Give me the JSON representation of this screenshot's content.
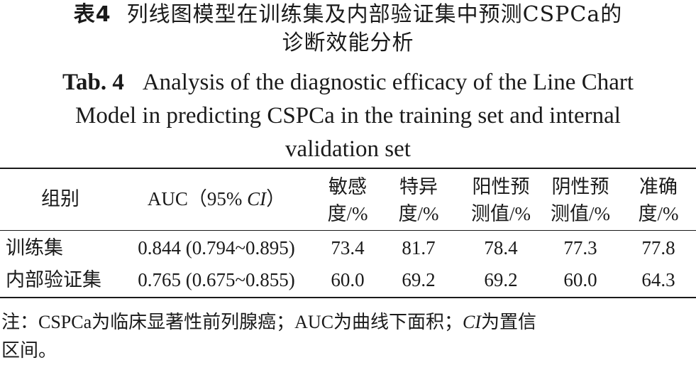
{
  "title_cn": {
    "tab_no": "表4",
    "line1": "列线图模型在训练集及内部验证集中预测CSPCa的",
    "line2": "诊断效能分析"
  },
  "title_en": {
    "tab_no": "Tab. 4",
    "line1": "Analysis of the diagnostic efficacy of the Line Chart",
    "line2": "Model in predicting CSPCa in the training set and internal",
    "line3": "validation set"
  },
  "table": {
    "headers": {
      "group": "组别",
      "auc_pre": "AUC（95% ",
      "auc_ci": "CI",
      "auc_post": "）",
      "sens": [
        "敏感",
        "度/%"
      ],
      "spec": [
        "特异",
        "度/%"
      ],
      "ppv": [
        "阳性预",
        "测值/%"
      ],
      "npv": [
        "阴性预",
        "测值/%"
      ],
      "acc": [
        "准确",
        "度/%"
      ]
    },
    "rows": [
      {
        "group": "训练集",
        "auc": "0.844 (0.794~0.895)",
        "sens": "73.4",
        "spec": "81.7",
        "ppv": "78.4",
        "npv": "77.3",
        "acc": "77.8"
      },
      {
        "group": "内部验证集",
        "auc": "0.765 (0.675~0.855)",
        "sens": "60.0",
        "spec": "69.2",
        "ppv": "69.2",
        "npv": "60.0",
        "acc": "64.3"
      }
    ]
  },
  "note": {
    "line1_pre": "注：CSPCa为临床显著性前列腺癌；AUC为曲线下面积；",
    "line1_ci": "CI",
    "line1_post": "为置信",
    "line2": "区间。"
  }
}
